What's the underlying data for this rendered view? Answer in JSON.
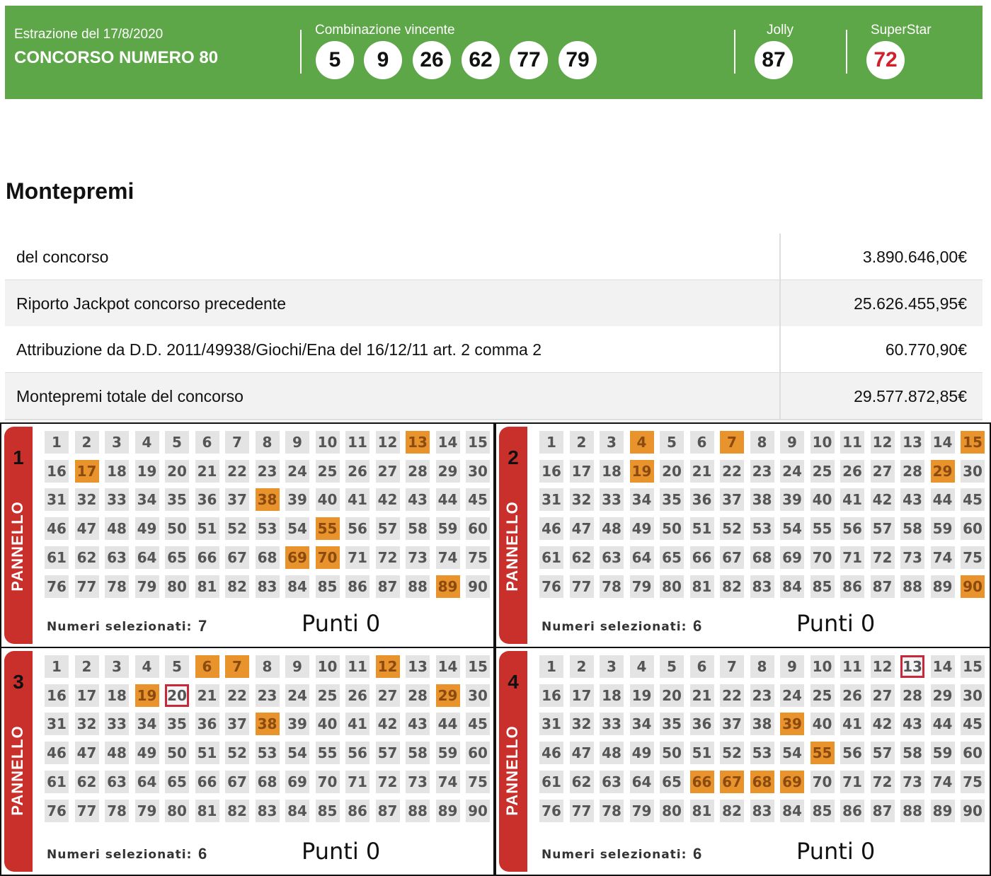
{
  "header": {
    "date": "Estrazione del 17/8/2020",
    "title": "CONCORSO NUMERO 80",
    "combination_label": "Combinazione vincente",
    "numbers": [
      5,
      9,
      26,
      62,
      77,
      79
    ],
    "jolly_label": "Jolly",
    "jolly": 87,
    "superstar_label": "SuperStar",
    "superstar": 72
  },
  "prize": {
    "title": "Montepremi",
    "rows": [
      [
        "del concorso",
        "3.890.646,00€"
      ],
      [
        "Riporto Jackpot concorso precedente",
        "25.626.455,95€"
      ],
      [
        "Attribuzione da D.D. 2011/49938/Giochi/Ena del 16/12/11 art. 2 comma 2",
        "60.770,90€"
      ],
      [
        "Montepremi totale del concorso",
        "29.577.872,85€"
      ]
    ]
  },
  "board_numbers": [
    1,
    2,
    3,
    4,
    5,
    6,
    7,
    8,
    9,
    10,
    11,
    12,
    13,
    14,
    15,
    16,
    17,
    18,
    19,
    20,
    21,
    22,
    23,
    24,
    25,
    26,
    27,
    28,
    29,
    30,
    31,
    32,
    33,
    34,
    35,
    36,
    37,
    38,
    39,
    40,
    41,
    42,
    43,
    44,
    45,
    46,
    47,
    48,
    49,
    50,
    51,
    52,
    53,
    54,
    55,
    56,
    57,
    58,
    59,
    60,
    61,
    62,
    63,
    64,
    65,
    66,
    67,
    68,
    69,
    70,
    71,
    72,
    73,
    74,
    75,
    76,
    77,
    78,
    79,
    80,
    81,
    82,
    83,
    84,
    85,
    86,
    87,
    88,
    89,
    90
  ],
  "panels": [
    {
      "number": 1,
      "label": "PANNELLO",
      "selected": [
        13,
        17,
        38,
        55,
        69,
        70,
        89
      ],
      "marked": [],
      "count_label": "Numeri selezionati:",
      "count": 7,
      "score": "Punti 0"
    },
    {
      "number": 2,
      "label": "PANNELLO",
      "selected": [
        4,
        7,
        15,
        19,
        29,
        90
      ],
      "marked": [],
      "count_label": "Numeri selezionati:",
      "count": 6,
      "score": "Punti 0"
    },
    {
      "number": 3,
      "label": "PANNELLO",
      "selected": [
        6,
        7,
        12,
        19,
        29,
        38
      ],
      "marked": [
        20
      ],
      "count_label": "Numeri selezionati:",
      "count": 6,
      "score": "Punti 0"
    },
    {
      "number": 4,
      "label": "PANNELLO",
      "selected": [
        39,
        55,
        66,
        67,
        68,
        69
      ],
      "marked": [
        13
      ],
      "count_label": "Numeri selezionati:",
      "count": 6,
      "score": "Punti 0"
    }
  ]
}
